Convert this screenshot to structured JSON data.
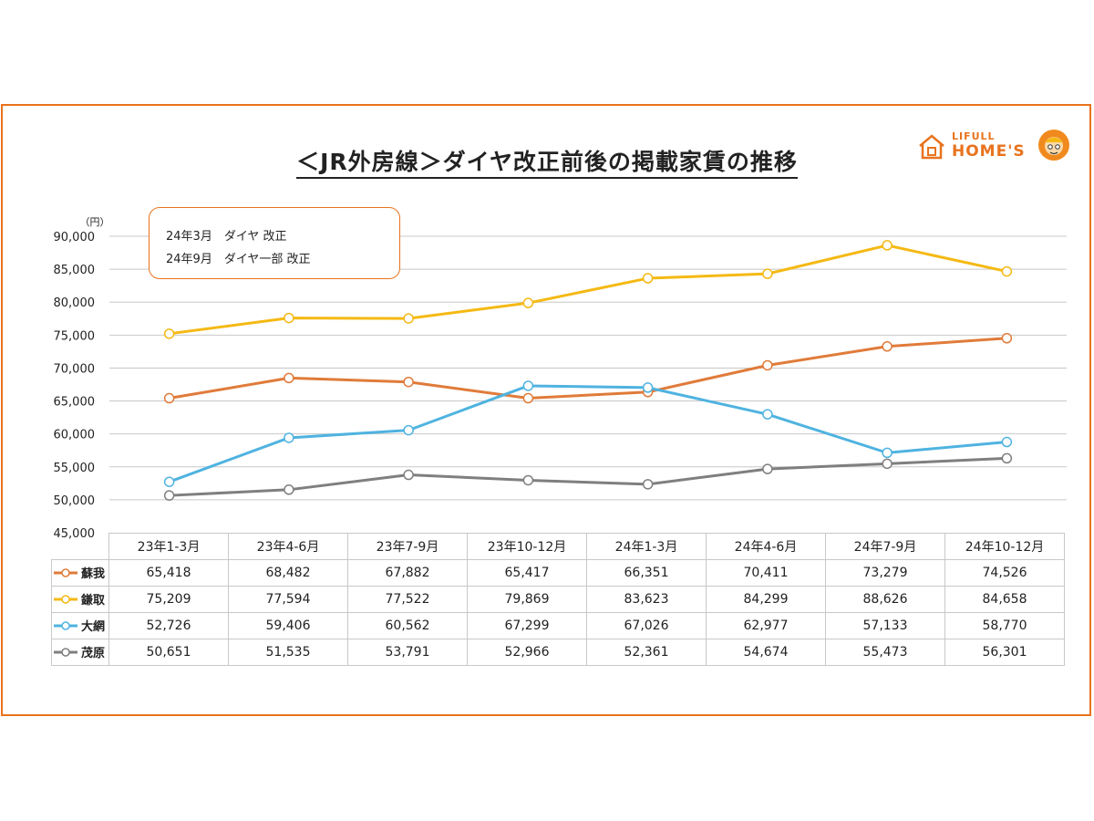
{
  "title": "＜JR外房線＞ダイヤ改正前後の掲載家賃の推移",
  "logo": {
    "small": "LIFULL",
    "big": "HOME'S"
  },
  "note": {
    "line1": "24年3月　ダイヤ 改正",
    "line2": "24年9月　ダイヤ一部 改正"
  },
  "chart_data": {
    "type": "line",
    "title": "＜JR外房線＞ダイヤ改正前後の掲載家賃の推移",
    "unit_label": "（円）",
    "ylim": [
      45000,
      90000
    ],
    "yticks": [
      "45,000",
      "50,000",
      "55,000",
      "60,000",
      "65,000",
      "70,000",
      "75,000",
      "80,000",
      "85,000",
      "90,000"
    ],
    "grid": true,
    "categories": [
      "23年1-3月",
      "23年4-6月",
      "23年7-9月",
      "23年10-12月",
      "24年1-3月",
      "24年4-6月",
      "24年7-9月",
      "24年10-12月"
    ],
    "series": [
      {
        "name": "蘇我",
        "color": "#e07b3a",
        "values": [
          65418,
          68482,
          67882,
          65417,
          66351,
          70411,
          73279,
          74526
        ],
        "labels": [
          "65,418",
          "68,482",
          "67,882",
          "65,417",
          "66,351",
          "70,411",
          "73,279",
          "74,526"
        ]
      },
      {
        "name": "鎌取",
        "color": "#f5b914",
        "values": [
          75209,
          77594,
          77522,
          79869,
          83623,
          84299,
          88626,
          84658
        ],
        "labels": [
          "75,209",
          "77,594",
          "77,522",
          "79,869",
          "83,623",
          "84,299",
          "88,626",
          "84,658"
        ]
      },
      {
        "name": "大網",
        "color": "#4fb3e0",
        "values": [
          52726,
          59406,
          60562,
          67299,
          67026,
          62977,
          57133,
          58770
        ],
        "labels": [
          "52,726",
          "59,406",
          "60,562",
          "67,299",
          "67,026",
          "62,977",
          "57,133",
          "58,770"
        ]
      },
      {
        "name": "茂原",
        "color": "#7f7f7f",
        "values": [
          50651,
          51535,
          53791,
          52966,
          52361,
          54674,
          55473,
          56301
        ],
        "labels": [
          "50,651",
          "51,535",
          "53,791",
          "52,966",
          "52,361",
          "54,674",
          "55,473",
          "56,301"
        ]
      }
    ]
  }
}
